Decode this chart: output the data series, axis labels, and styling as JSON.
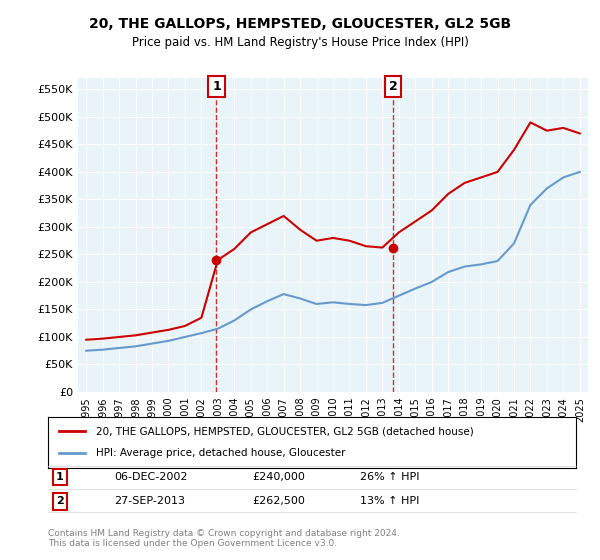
{
  "title": "20, THE GALLOPS, HEMPSTED, GLOUCESTER, GL2 5GB",
  "subtitle": "Price paid vs. HM Land Registry's House Price Index (HPI)",
  "xlabel": "",
  "ylabel": "",
  "ylim": [
    0,
    570000
  ],
  "yticks": [
    0,
    50000,
    100000,
    150000,
    200000,
    250000,
    300000,
    350000,
    400000,
    450000,
    500000,
    550000
  ],
  "ytick_labels": [
    "£0",
    "£50K",
    "£100K",
    "£150K",
    "£200K",
    "£250K",
    "£300K",
    "£350K",
    "£400K",
    "£450K",
    "£500K",
    "£550K"
  ],
  "red_line_label": "20, THE GALLOPS, HEMPSTED, GLOUCESTER, GL2 5GB (detached house)",
  "blue_line_label": "HPI: Average price, detached house, Gloucester",
  "sale1_date": "06-DEC-2002",
  "sale1_price": 240000,
  "sale1_hpi_pct": "26%",
  "sale2_date": "27-SEP-2013",
  "sale2_price": 262500,
  "sale2_hpi_pct": "13%",
  "footnote1": "Contains HM Land Registry data © Crown copyright and database right 2024.",
  "footnote2": "This data is licensed under the Open Government Licence v3.0.",
  "background_color": "#ffffff",
  "plot_background": "#e8f4f8",
  "grid_color": "#ffffff",
  "red_color": "#cc0000",
  "blue_color": "#6699cc",
  "sale_marker_color": "#cc0000",
  "dashed_line_color": "#cc0000",
  "years": [
    1995,
    1996,
    1997,
    1998,
    1999,
    2000,
    2001,
    2002,
    2003,
    2004,
    2005,
    2006,
    2007,
    2008,
    2009,
    2010,
    2011,
    2012,
    2013,
    2014,
    2015,
    2016,
    2017,
    2018,
    2019,
    2020,
    2021,
    2022,
    2023,
    2024,
    2025
  ],
  "red_values": [
    95000,
    97000,
    100000,
    103000,
    108000,
    113000,
    120000,
    135000,
    240000,
    260000,
    290000,
    305000,
    320000,
    295000,
    275000,
    280000,
    275000,
    265000,
    262500,
    290000,
    310000,
    330000,
    360000,
    380000,
    390000,
    400000,
    440000,
    490000,
    475000,
    480000,
    470000
  ],
  "blue_values": [
    75000,
    77000,
    80000,
    83000,
    88000,
    93000,
    100000,
    107000,
    115000,
    130000,
    150000,
    165000,
    178000,
    170000,
    160000,
    163000,
    160000,
    158000,
    162000,
    175000,
    188000,
    200000,
    218000,
    228000,
    232000,
    238000,
    270000,
    340000,
    370000,
    390000,
    400000
  ]
}
